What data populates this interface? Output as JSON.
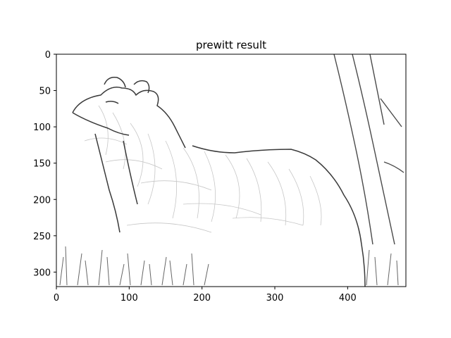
{
  "figure": {
    "title": "prewitt result"
  },
  "axes": {
    "x_ticks": [
      "0",
      "100",
      "200",
      "300",
      "400"
    ],
    "y_ticks": [
      "0",
      "50",
      "100",
      "150",
      "200",
      "250",
      "300"
    ],
    "x_range": [
      0,
      480
    ],
    "y_range": [
      0,
      320
    ],
    "y_inverted": true
  },
  "image": {
    "description_icon": "edge-map-dog-sketch",
    "palette": {
      "background": "#ffffff",
      "edge": "#3a3a3a",
      "faint_edge": "#9a9a9a"
    }
  }
}
